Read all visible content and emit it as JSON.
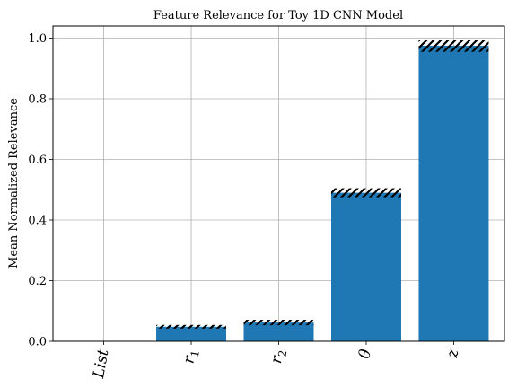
{
  "chart_data": {
    "type": "bar",
    "title": "Feature Relevance for Toy 1D CNN Model",
    "xlabel": "",
    "ylabel": "Mean Normalized Relevance",
    "categories": [
      "List",
      "r",
      "r",
      "θ",
      "z"
    ],
    "category_subscripts": [
      "",
      "1",
      "2",
      "",
      ""
    ],
    "values": [
      0.0,
      0.048,
      0.062,
      0.49,
      0.975
    ],
    "error_bands": [
      0.0,
      0.006,
      0.009,
      0.015,
      0.02
    ],
    "ylim": [
      0.0,
      1.04
    ],
    "yticks": [
      0.0,
      0.2,
      0.4,
      0.6,
      0.8,
      1.0
    ],
    "ytick_labels": [
      "0.0",
      "0.2",
      "0.4",
      "0.6",
      "0.8",
      "1.0"
    ],
    "grid": true,
    "bar_color": "#1f77b4",
    "hatch": "//"
  }
}
